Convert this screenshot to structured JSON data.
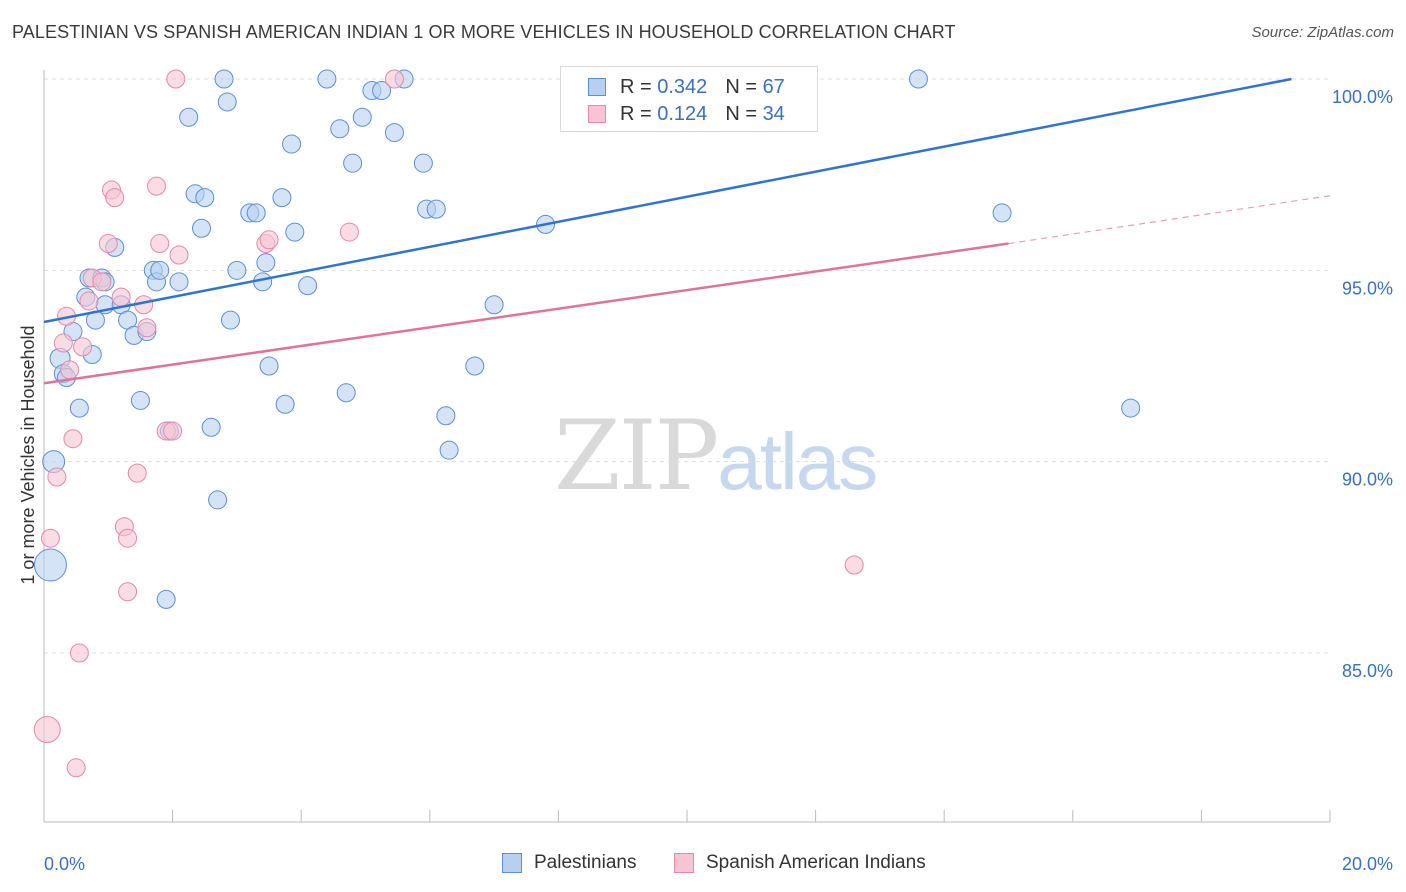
{
  "header": {
    "title": "PALESTINIAN VS SPANISH AMERICAN INDIAN 1 OR MORE VEHICLES IN HOUSEHOLD CORRELATION CHART",
    "source": "Source: ZipAtlas.com"
  },
  "watermark": {
    "zip": "ZIP",
    "atlas": "atlas"
  },
  "legend_top": [
    {
      "r_label": "R =",
      "r_value": "0.342",
      "n_label": "N =",
      "n_value": "67"
    },
    {
      "r_label": "R =",
      "r_value": "0.124",
      "n_label": "N =",
      "n_value": "34"
    }
  ],
  "colors": {
    "blue_fill": "#b8d0f0",
    "blue_stroke": "#5b8fd6",
    "blue_line": "#2f74d0",
    "pink_fill": "#f8c4d4",
    "pink_stroke": "#e688a8",
    "pink_line": "#e0739a",
    "tick_label": "#3a6fc4",
    "grid": "#dddddd"
  },
  "chart_data": {
    "type": "scatter",
    "title": "PALESTINIAN VS SPANISH AMERICAN INDIAN 1 OR MORE VEHICLES IN HOUSEHOLD CORRELATION CHART",
    "xlabel": "",
    "ylabel": "1 or more Vehicles in Household",
    "x_unit": "%",
    "xlim": [
      0.0,
      20.0
    ],
    "ylim": [
      80.5,
      100.6
    ],
    "x_tick_labels": [
      {
        "value": 0.0,
        "label": "0.0%"
      },
      {
        "value": 20.0,
        "label": "20.0%"
      }
    ],
    "y_tick_labels": [
      {
        "value": 100.0,
        "label": "100.0%"
      },
      {
        "value": 95.0,
        "label": "95.0%"
      },
      {
        "value": 90.0,
        "label": "90.0%"
      },
      {
        "value": 85.0,
        "label": "85.0%"
      }
    ],
    "grid": true,
    "legend_position": "bottom-center",
    "series": [
      {
        "name": "Palestinians",
        "r": 0.342,
        "n": 67,
        "trend": {
          "x": [
            0.0,
            19.4
          ],
          "y": [
            93.65,
            100.0
          ],
          "dashed_to": null
        },
        "points": [
          [
            0.1,
            87.3,
            16
          ],
          [
            0.15,
            90.0,
            11
          ],
          [
            0.25,
            92.7,
            10
          ],
          [
            0.3,
            92.3,
            9
          ],
          [
            0.35,
            92.2,
            9
          ],
          [
            0.45,
            93.4,
            9
          ],
          [
            0.55,
            91.4,
            9
          ],
          [
            0.65,
            94.3,
            9
          ],
          [
            0.7,
            94.8,
            9
          ],
          [
            0.75,
            92.8,
            9
          ],
          [
            0.8,
            93.7,
            9
          ],
          [
            0.9,
            94.8,
            9
          ],
          [
            0.95,
            94.1,
            9
          ],
          [
            1.1,
            95.6,
            9
          ],
          [
            1.2,
            94.1,
            9
          ],
          [
            1.3,
            93.7,
            9
          ],
          [
            1.4,
            93.3,
            9
          ],
          [
            1.5,
            91.6,
            9
          ],
          [
            1.6,
            93.4,
            9
          ],
          [
            1.7,
            95.0,
            9
          ],
          [
            1.75,
            94.7,
            9
          ],
          [
            1.8,
            95.0,
            9
          ],
          [
            1.9,
            86.4,
            9
          ],
          [
            1.95,
            90.8,
            9
          ],
          [
            2.1,
            94.7,
            9
          ],
          [
            2.25,
            99.0,
            9
          ],
          [
            2.35,
            97.0,
            9
          ],
          [
            2.45,
            96.1,
            9
          ],
          [
            2.5,
            96.9,
            9
          ],
          [
            2.6,
            90.9,
            9
          ],
          [
            2.7,
            89.0,
            9
          ],
          [
            2.8,
            100.0,
            9
          ],
          [
            2.85,
            99.4,
            9
          ],
          [
            2.9,
            93.7,
            9
          ],
          [
            3.0,
            95.0,
            9
          ],
          [
            3.2,
            96.5,
            9
          ],
          [
            3.3,
            96.5,
            9
          ],
          [
            3.4,
            94.7,
            9
          ],
          [
            3.45,
            95.2,
            9
          ],
          [
            3.5,
            92.5,
            9
          ],
          [
            3.7,
            96.9,
            9
          ],
          [
            3.75,
            91.5,
            9
          ],
          [
            3.85,
            98.3,
            9
          ],
          [
            3.9,
            96.0,
            9
          ],
          [
            4.1,
            94.6,
            9
          ],
          [
            4.4,
            100.0,
            9
          ],
          [
            4.6,
            98.7,
            9
          ],
          [
            4.7,
            91.8,
            9
          ],
          [
            4.8,
            97.8,
            9
          ],
          [
            4.95,
            99.0,
            9
          ],
          [
            5.1,
            99.7,
            9
          ],
          [
            5.25,
            99.7,
            9
          ],
          [
            5.45,
            98.6,
            9
          ],
          [
            5.6,
            100.0,
            9
          ],
          [
            5.9,
            97.8,
            9
          ],
          [
            5.95,
            96.6,
            9
          ],
          [
            6.1,
            96.6,
            9
          ],
          [
            6.25,
            91.2,
            9
          ],
          [
            6.3,
            90.3,
            9
          ],
          [
            6.7,
            92.5,
            9
          ],
          [
            7.0,
            94.1,
            9
          ],
          [
            7.8,
            96.2,
            9
          ],
          [
            11.7,
            100.0,
            9
          ],
          [
            13.6,
            100.0,
            9
          ],
          [
            14.9,
            96.5,
            9
          ],
          [
            16.9,
            91.4,
            9
          ],
          [
            0.95,
            94.7,
            9
          ]
        ]
      },
      {
        "name": "Spanish American Indians",
        "r": 0.124,
        "n": 34,
        "trend": {
          "x": [
            0.0,
            15.0
          ],
          "y": [
            92.05,
            95.7
          ],
          "dashed_to": [
            20.0,
            96.95
          ]
        },
        "points": [
          [
            0.05,
            83.0,
            13
          ],
          [
            0.1,
            88.0,
            9
          ],
          [
            0.2,
            89.6,
            9
          ],
          [
            0.3,
            93.1,
            9
          ],
          [
            0.35,
            93.8,
            9
          ],
          [
            0.4,
            92.4,
            9
          ],
          [
            0.45,
            90.6,
            9
          ],
          [
            0.5,
            82.0,
            9
          ],
          [
            0.55,
            85.0,
            9
          ],
          [
            0.6,
            93.0,
            9
          ],
          [
            0.7,
            94.2,
            9
          ],
          [
            0.75,
            94.8,
            9
          ],
          [
            0.9,
            94.7,
            9
          ],
          [
            1.0,
            95.7,
            9
          ],
          [
            1.05,
            97.1,
            9
          ],
          [
            1.1,
            96.9,
            9
          ],
          [
            1.2,
            94.3,
            9
          ],
          [
            1.25,
            88.3,
            9
          ],
          [
            1.3,
            88.0,
            9
          ],
          [
            1.3,
            86.6,
            9
          ],
          [
            1.45,
            89.7,
            9
          ],
          [
            1.55,
            94.1,
            9
          ],
          [
            1.6,
            93.5,
            9
          ],
          [
            1.75,
            97.2,
            9
          ],
          [
            1.8,
            95.7,
            9
          ],
          [
            1.9,
            90.8,
            9
          ],
          [
            2.0,
            90.8,
            9
          ],
          [
            2.1,
            95.4,
            9
          ],
          [
            2.05,
            100.0,
            9
          ],
          [
            3.45,
            95.7,
            9
          ],
          [
            3.5,
            95.8,
            9
          ],
          [
            4.75,
            96.0,
            9
          ],
          [
            5.45,
            100.0,
            9
          ],
          [
            12.6,
            87.3,
            9
          ]
        ]
      }
    ]
  }
}
